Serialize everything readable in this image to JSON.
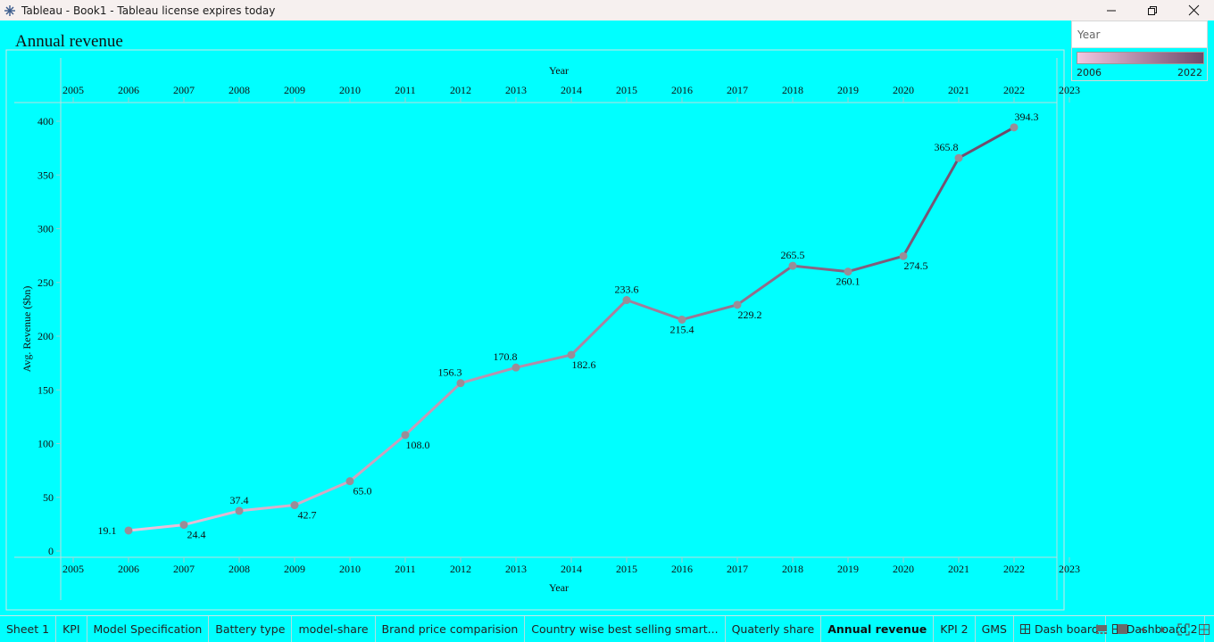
{
  "window": {
    "title": "Tableau - Book1 - Tableau license expires today"
  },
  "sheet": {
    "title": "Annual revenue"
  },
  "legend": {
    "header": "Year",
    "min_label": "2006",
    "max_label": "2022",
    "color_start": "#f2c6e0",
    "color_end": "#6e4a6a"
  },
  "chart_data": {
    "type": "line",
    "x": [
      2006,
      2007,
      2008,
      2009,
      2010,
      2011,
      2012,
      2013,
      2014,
      2015,
      2016,
      2017,
      2018,
      2019,
      2020,
      2021,
      2022
    ],
    "values": [
      19.1,
      24.4,
      37.4,
      42.7,
      65.0,
      108.0,
      156.3,
      170.8,
      182.6,
      233.6,
      215.4,
      229.2,
      265.5,
      260.1,
      274.5,
      365.8,
      394.3
    ],
    "labels": [
      "19.1",
      "24.4",
      "37.4",
      "42.7",
      "65.0",
      "108.0",
      "156.3",
      "170.8",
      "182.6",
      "233.6",
      "215.4",
      "229.2",
      "265.5",
      "260.1",
      "274.5",
      "365.8",
      "394.3"
    ],
    "x_ticks": [
      "2005",
      "2006",
      "2007",
      "2008",
      "2009",
      "2010",
      "2011",
      "2012",
      "2013",
      "2014",
      "2015",
      "2016",
      "2017",
      "2018",
      "2019",
      "2020",
      "2021",
      "2022",
      "2023"
    ],
    "y_ticks": [
      "0",
      "50",
      "100",
      "150",
      "200",
      "250",
      "300",
      "350",
      "400"
    ],
    "xlabel": "Year",
    "ylabel": "Avg. Revenue ($bn)",
    "xlim": [
      2005,
      2023
    ],
    "ylim": [
      0,
      400
    ],
    "marker_color": "#9a8d97"
  },
  "tabs": [
    {
      "label": "Sheet 1",
      "active": false,
      "icon": ""
    },
    {
      "label": "KPI",
      "active": false,
      "icon": ""
    },
    {
      "label": "Model Specification",
      "active": false,
      "icon": ""
    },
    {
      "label": "Battery type",
      "active": false,
      "icon": ""
    },
    {
      "label": "model-share",
      "active": false,
      "icon": ""
    },
    {
      "label": "Brand price comparision",
      "active": false,
      "icon": ""
    },
    {
      "label": "Country wise best selling smart...",
      "active": false,
      "icon": ""
    },
    {
      "label": "Quaterly share",
      "active": false,
      "icon": ""
    },
    {
      "label": "Annual revenue",
      "active": true,
      "icon": ""
    },
    {
      "label": "KPI 2",
      "active": false,
      "icon": ""
    },
    {
      "label": "GMS",
      "active": false,
      "icon": ""
    },
    {
      "label": "Dash board",
      "active": false,
      "icon": "dashboard-icon"
    },
    {
      "label": "Dashboard 2",
      "active": false,
      "icon": "dashboard-icon"
    }
  ]
}
